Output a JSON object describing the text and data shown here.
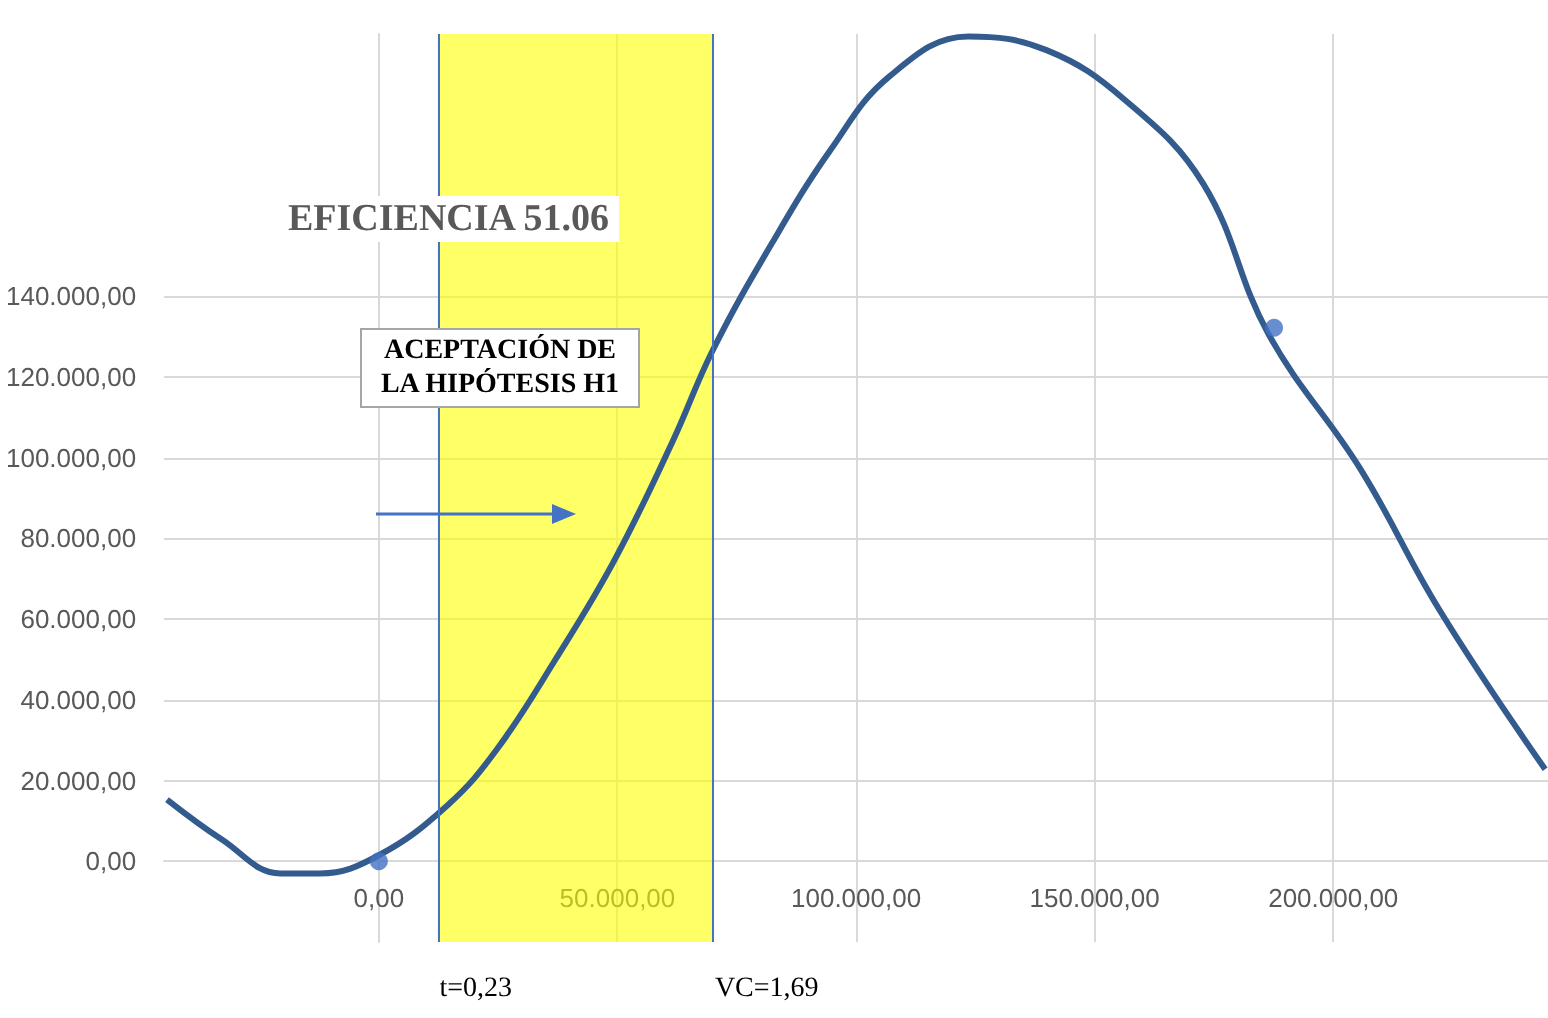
{
  "chart_data": {
    "type": "line",
    "title": "EFICIENCIA 51.06",
    "xlim": [
      -45000,
      245000
    ],
    "ylim": [
      -20000,
      205000
    ],
    "xticks": [
      {
        "value": 0,
        "label": "0,00"
      },
      {
        "value": 50000,
        "label": "50.000,00"
      },
      {
        "value": 100000,
        "label": "100.000,00"
      },
      {
        "value": 150000,
        "label": "150.000,00"
      },
      {
        "value": 200000,
        "label": "200.000,00"
      }
    ],
    "yticks": [
      {
        "value": 0,
        "label": "0,00"
      },
      {
        "value": 20000,
        "label": "20.000,00"
      },
      {
        "value": 40000,
        "label": "40.000,00"
      },
      {
        "value": 60000,
        "label": "60.000,00"
      },
      {
        "value": 80000,
        "label": "80.000,00"
      },
      {
        "value": 100000,
        "label": "100.000,00"
      },
      {
        "value": 120000,
        "label": "120.000,00"
      },
      {
        "value": 140000,
        "label": "140.000,00"
      }
    ],
    "grid": true,
    "series": [
      {
        "color": "#335b8e",
        "marker": "none",
        "x": [
          -44400,
          -32900,
          -20600,
          -12300,
          0,
          14400,
          24700,
          37000,
          49400,
          61700,
          70000,
          82300,
          94600,
          107000,
          123500,
          139900,
          156400,
          172800,
          186400,
          205800,
          222200,
          244400
        ],
        "values": [
          15300,
          5400,
          -3000,
          -3000,
          1500,
          13900,
          27700,
          50000,
          74700,
          104400,
          126700,
          153000,
          176200,
          194500,
          204400,
          201000,
          188600,
          167800,
          130700,
          97000,
          62400,
          22800
        ]
      },
      {
        "type": "scatter",
        "color": "#4472c4",
        "marker": "circle",
        "x": [
          0,
          187600
        ],
        "values": [
          0,
          132200
        ]
      }
    ],
    "bands": [
      {
        "axis": "x",
        "from": 12300,
        "to": 70000,
        "color": "#ffff00"
      }
    ],
    "ref_lines": [
      {
        "axis": "x",
        "value": 12300,
        "color": "#4472c4"
      },
      {
        "axis": "x",
        "value": 70000,
        "color": "#4472c4"
      }
    ],
    "annotations": [
      "ACEPTACIÓN DE LA HIPÓTESIS H1",
      "t=0,23",
      "VC=1,69"
    ]
  }
}
